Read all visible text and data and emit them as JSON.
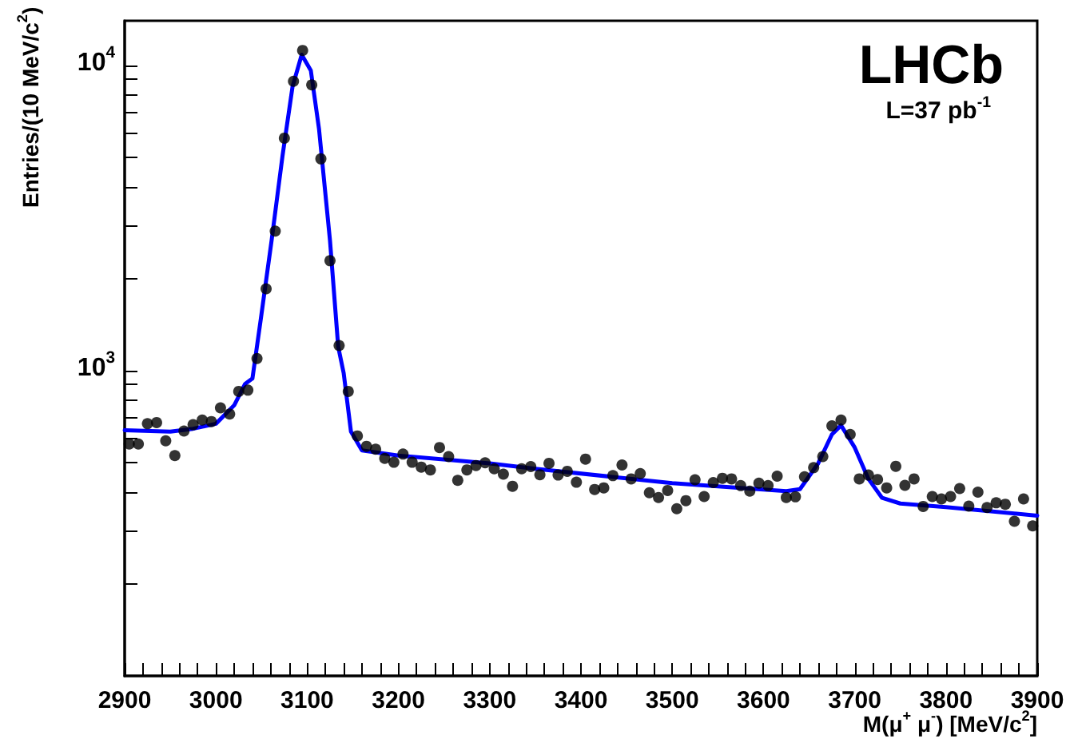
{
  "chart_data": {
    "type": "scatter",
    "xlabel": "M(μ$^{+}$ μ$^{-}$) [MeV/c$^{2}$]",
    "ylabel": "Entries/(10 MeV/c$^{2}$)",
    "annotations": [
      "LHCb",
      "L=37 pb$^{-1}$"
    ],
    "log": "y",
    "grid": false,
    "xlim": [
      2900,
      3900
    ],
    "xticks": [
      2900,
      {
        "value": 2920,
        "label": null
      },
      {
        "value": 2940,
        "label": null
      },
      {
        "value": 2960,
        "label": null
      },
      {
        "value": 2980,
        "label": null
      },
      3000,
      {
        "value": 3020,
        "label": null
      },
      {
        "value": 3040,
        "label": null
      },
      {
        "value": 3060,
        "label": null
      },
      {
        "value": 3080,
        "label": null
      },
      3100,
      {
        "value": 3120,
        "label": null
      },
      {
        "value": 3140,
        "label": null
      },
      {
        "value": 3160,
        "label": null
      },
      {
        "value": 3180,
        "label": null
      },
      3200,
      {
        "value": 3220,
        "label": null
      },
      {
        "value": 3240,
        "label": null
      },
      {
        "value": 3260,
        "label": null
      },
      {
        "value": 3280,
        "label": null
      },
      3300,
      {
        "value": 3320,
        "label": null
      },
      {
        "value": 3340,
        "label": null
      },
      {
        "value": 3360,
        "label": null
      },
      {
        "value": 3380,
        "label": null
      },
      3400,
      {
        "value": 3420,
        "label": null
      },
      {
        "value": 3440,
        "label": null
      },
      {
        "value": 3460,
        "label": null
      },
      {
        "value": 3480,
        "label": null
      },
      3500,
      {
        "value": 3520,
        "label": null
      },
      {
        "value": 3540,
        "label": null
      },
      {
        "value": 3560,
        "label": null
      },
      {
        "value": 3580,
        "label": null
      },
      3600,
      {
        "value": 3620,
        "label": null
      },
      {
        "value": 3640,
        "label": null
      },
      {
        "value": 3660,
        "label": null
      },
      {
        "value": 3680,
        "label": null
      },
      3700,
      {
        "value": 3720,
        "label": null
      },
      {
        "value": 3740,
        "label": null
      },
      {
        "value": 3760,
        "label": null
      },
      {
        "value": 3780,
        "label": null
      },
      3800,
      {
        "value": 3820,
        "label": null
      },
      {
        "value": 3840,
        "label": null
      },
      {
        "value": 3860,
        "label": null
      },
      {
        "value": 3880,
        "label": null
      },
      3900
    ],
    "ylim": [
      100,
      14000
    ],
    "yticks": [
      {
        "value": 200,
        "label": null
      },
      {
        "value": 300,
        "label": null
      },
      {
        "value": 400,
        "label": null
      },
      {
        "value": 500,
        "label": null
      },
      {
        "value": 600,
        "label": null
      },
      {
        "value": 700,
        "label": null
      },
      {
        "value": 800,
        "label": null
      },
      {
        "value": 900,
        "label": null
      },
      {
        "value": 1000,
        "label": "10$^{3}$"
      },
      {
        "value": 2000,
        "label": null
      },
      {
        "value": 3000,
        "label": null
      },
      {
        "value": 4000,
        "label": null
      },
      {
        "value": 5000,
        "label": null
      },
      {
        "value": 6000,
        "label": null
      },
      {
        "value": 7000,
        "label": null
      },
      {
        "value": 8000,
        "label": null
      },
      {
        "value": 9000,
        "label": null
      },
      {
        "value": 10000,
        "label": "10$^{4}$"
      }
    ],
    "series": [
      {
        "marker": "circle",
        "color": "#000000",
        "x": [
          2905,
          2915,
          2925,
          2935,
          2945,
          2955,
          2965,
          2975,
          2985,
          2995,
          3005,
          3015,
          3025,
          3035,
          3045,
          3055,
          3065,
          3075,
          3085,
          3095,
          3105,
          3115,
          3125,
          3135,
          3145,
          3155,
          3165,
          3175,
          3185,
          3195,
          3205,
          3215,
          3225,
          3235,
          3245,
          3255,
          3265,
          3275,
          3285,
          3295,
          3305,
          3315,
          3325,
          3335,
          3345,
          3355,
          3365,
          3375,
          3385,
          3395,
          3405,
          3415,
          3425,
          3435,
          3445,
          3455,
          3465,
          3475,
          3485,
          3495,
          3505,
          3515,
          3525,
          3535,
          3545,
          3555,
          3565,
          3575,
          3585,
          3595,
          3605,
          3615,
          3625,
          3635,
          3645,
          3655,
          3665,
          3675,
          3685,
          3695,
          3705,
          3715,
          3725,
          3735,
          3745,
          3755,
          3765,
          3775,
          3785,
          3795,
          3805,
          3815,
          3825,
          3835,
          3845,
          3855,
          3865,
          3875,
          3885,
          3895
        ],
        "values": [
          575,
          575,
          670,
          676,
          589,
          527,
          634,
          665,
          689,
          681,
          755,
          721,
          855,
          863,
          1096,
          1854,
          2866,
          5777,
          8869,
          11190,
          8630,
          4940,
          2291,
          1208,
          855,
          611,
          565,
          553,
          516,
          501,
          533,
          501,
          483,
          473,
          560,
          523,
          437,
          473,
          489,
          499,
          477,
          458,
          418,
          477,
          485,
          456,
          497,
          455,
          468,
          431,
          513,
          408,
          413,
          453,
          491,
          442,
          460,
          398,
          384,
          405,
          353,
          375,
          439,
          387,
          430,
          444,
          442,
          420,
          403,
          428,
          420,
          451,
          384,
          386,
          449,
          481,
          523,
          659,
          689,
          618,
          442,
          455,
          440,
          413,
          486,
          421,
          442,
          359,
          387,
          380,
          387,
          411,
          360,
          400,
          356,
          369,
          365,
          321,
          380,
          310
        ]
      },
      {
        "type": "line",
        "marker": "none",
        "line_style": "solid",
        "color": "#0000ff",
        "x": [
          2900,
          2950,
          2975,
          3000,
          3020,
          3032,
          3040,
          3049,
          3061,
          3073,
          3084,
          3094,
          3104,
          3113,
          3125,
          3134,
          3140,
          3148,
          3160,
          3200,
          3300,
          3350,
          3500,
          3625,
          3640,
          3660,
          3675,
          3685,
          3700,
          3715,
          3730,
          3750,
          3800,
          3900
        ],
        "values": [
          638,
          631,
          645,
          670,
          770,
          905,
          942,
          1463,
          2668,
          5060,
          8530,
          10840,
          9620,
          6180,
          2668,
          1198,
          981,
          631,
          548,
          527,
          497,
          477,
          428,
          403,
          409,
          497,
          618,
          662,
          560,
          442,
          383,
          367,
          357,
          335
        ]
      }
    ]
  }
}
